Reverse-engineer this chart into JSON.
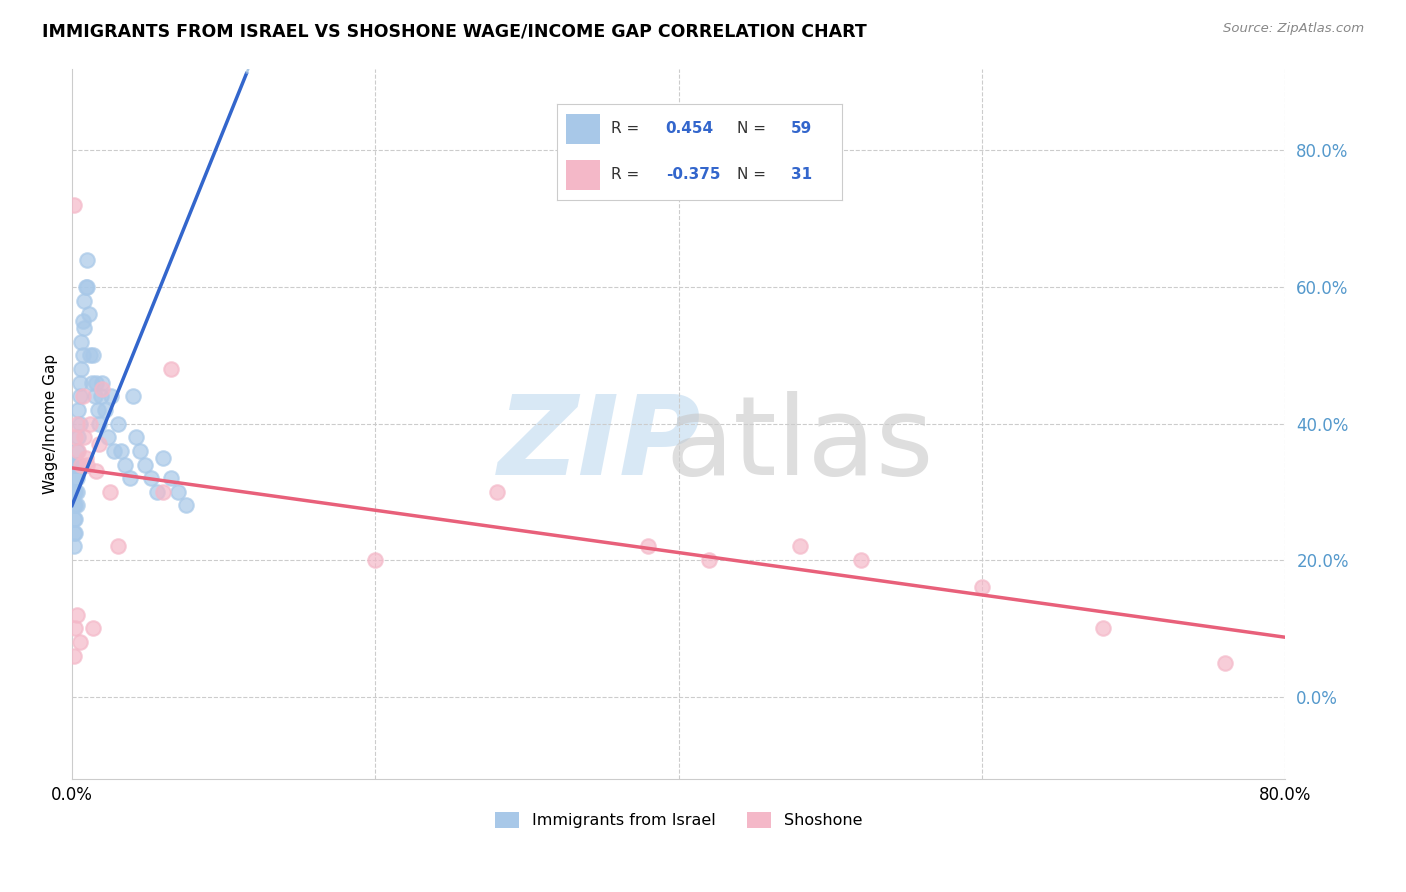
{
  "title": "IMMIGRANTS FROM ISRAEL VS SHOSHONE WAGE/INCOME GAP CORRELATION CHART",
  "source": "Source: ZipAtlas.com",
  "ylabel": "Wage/Income Gap",
  "blue_label": "Immigrants from Israel",
  "pink_label": "Shoshone",
  "blue_R": 0.454,
  "blue_N": 59,
  "pink_R": -0.375,
  "pink_N": 31,
  "blue_color": "#a8c8e8",
  "pink_color": "#f4b8c8",
  "blue_line_color": "#3366cc",
  "pink_line_color": "#e8607a",
  "blue_dash_color": "#99bbdd",
  "xmin": 0.0,
  "xmax": 0.8,
  "ymin": -0.12,
  "ymax": 0.92,
  "right_yticks": [
    0.0,
    0.2,
    0.4,
    0.6,
    0.8
  ],
  "right_yticklabels": [
    "0.0%",
    "20.0%",
    "40.0%",
    "60.0%",
    "80.0%"
  ],
  "xticks": [
    0.0,
    0.1,
    0.2,
    0.3,
    0.4,
    0.5,
    0.6,
    0.7,
    0.8
  ],
  "xticklabels": [
    "0.0%",
    "",
    "",
    "",
    "",
    "",
    "",
    "",
    "80.0%"
  ],
  "blue_points_x": [
    0.001,
    0.001,
    0.001,
    0.001,
    0.001,
    0.002,
    0.002,
    0.002,
    0.002,
    0.002,
    0.002,
    0.003,
    0.003,
    0.003,
    0.003,
    0.003,
    0.004,
    0.004,
    0.004,
    0.005,
    0.005,
    0.005,
    0.006,
    0.006,
    0.007,
    0.007,
    0.008,
    0.008,
    0.009,
    0.01,
    0.01,
    0.011,
    0.012,
    0.013,
    0.014,
    0.015,
    0.016,
    0.017,
    0.018,
    0.019,
    0.02,
    0.022,
    0.024,
    0.026,
    0.028,
    0.03,
    0.032,
    0.035,
    0.038,
    0.04,
    0.042,
    0.045,
    0.048,
    0.052,
    0.056,
    0.06,
    0.065,
    0.07,
    0.075
  ],
  "blue_points_y": [
    0.3,
    0.28,
    0.26,
    0.24,
    0.22,
    0.34,
    0.32,
    0.3,
    0.28,
    0.26,
    0.24,
    0.36,
    0.34,
    0.32,
    0.3,
    0.28,
    0.42,
    0.38,
    0.34,
    0.46,
    0.44,
    0.4,
    0.52,
    0.48,
    0.55,
    0.5,
    0.58,
    0.54,
    0.6,
    0.64,
    0.6,
    0.56,
    0.5,
    0.46,
    0.5,
    0.44,
    0.46,
    0.42,
    0.4,
    0.44,
    0.46,
    0.42,
    0.38,
    0.44,
    0.36,
    0.4,
    0.36,
    0.34,
    0.32,
    0.44,
    0.38,
    0.36,
    0.34,
    0.32,
    0.3,
    0.35,
    0.32,
    0.3,
    0.28
  ],
  "pink_points_x": [
    0.001,
    0.001,
    0.002,
    0.002,
    0.003,
    0.003,
    0.004,
    0.005,
    0.006,
    0.007,
    0.008,
    0.009,
    0.01,
    0.012,
    0.014,
    0.016,
    0.018,
    0.02,
    0.025,
    0.03,
    0.06,
    0.065,
    0.2,
    0.28,
    0.38,
    0.42,
    0.48,
    0.52,
    0.6,
    0.68,
    0.76
  ],
  "pink_points_y": [
    0.72,
    0.06,
    0.38,
    0.1,
    0.4,
    0.12,
    0.36,
    0.08,
    0.34,
    0.44,
    0.38,
    0.35,
    0.34,
    0.4,
    0.1,
    0.33,
    0.37,
    0.45,
    0.3,
    0.22,
    0.3,
    0.48,
    0.2,
    0.3,
    0.22,
    0.2,
    0.22,
    0.2,
    0.16,
    0.1,
    0.05
  ]
}
